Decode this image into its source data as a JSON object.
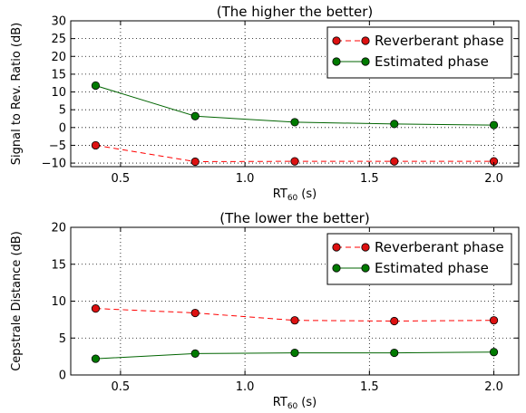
{
  "chart_data": [
    {
      "type": "line",
      "title": "(The higher the better)",
      "xlabel": "RT",
      "xlabel_sub": "60",
      "xlabel_unit": "(s)",
      "ylabel": "Signal to Rev. Ratio (dB)",
      "xlim": [
        0.3,
        2.1
      ],
      "ylim": [
        -11,
        30
      ],
      "xticks": [
        0.5,
        1.0,
        1.5,
        2.0
      ],
      "xtick_labels": [
        "0.5",
        "1.0",
        "1.5",
        "2.0"
      ],
      "yticks": [
        -10,
        -5,
        0,
        5,
        10,
        15,
        20,
        25,
        30
      ],
      "ytick_labels": [
        "−10",
        "−5",
        "0",
        "5",
        "10",
        "15",
        "20",
        "25",
        "30"
      ],
      "grid": true,
      "legend_position": "top-right",
      "x": [
        0.4,
        0.8,
        1.2,
        1.6,
        2.0
      ],
      "series": [
        {
          "name": "Reverberant phase",
          "color": "#ff0000",
          "marker_color": "#dd1111",
          "linestyle": "dashed",
          "values": [
            -5.0,
            -9.6,
            -9.5,
            -9.5,
            -9.5
          ]
        },
        {
          "name": "Estimated phase",
          "color": "#006400",
          "marker_color": "#007a00",
          "linestyle": "solid",
          "values": [
            11.8,
            3.2,
            1.5,
            1.0,
            0.7
          ]
        }
      ]
    },
    {
      "type": "line",
      "title": "(The lower the better)",
      "xlabel": "RT",
      "xlabel_sub": "60",
      "xlabel_unit": "(s)",
      "ylabel": "Cepstrale Distance (dB)",
      "xlim": [
        0.3,
        2.1
      ],
      "ylim": [
        0,
        20
      ],
      "xticks": [
        0.5,
        1.0,
        1.5,
        2.0
      ],
      "xtick_labels": [
        "0.5",
        "1.0",
        "1.5",
        "2.0"
      ],
      "yticks": [
        0,
        5,
        10,
        15,
        20
      ],
      "ytick_labels": [
        "0",
        "5",
        "10",
        "15",
        "20"
      ],
      "grid": true,
      "legend_position": "top-right",
      "x": [
        0.4,
        0.8,
        1.2,
        1.6,
        2.0
      ],
      "series": [
        {
          "name": "Reverberant phase",
          "color": "#ff0000",
          "marker_color": "#dd1111",
          "linestyle": "dashed",
          "values": [
            9.0,
            8.4,
            7.4,
            7.3,
            7.4
          ]
        },
        {
          "name": "Estimated phase",
          "color": "#006400",
          "marker_color": "#007a00",
          "linestyle": "solid",
          "values": [
            2.2,
            2.9,
            3.0,
            3.0,
            3.1
          ]
        }
      ]
    }
  ]
}
